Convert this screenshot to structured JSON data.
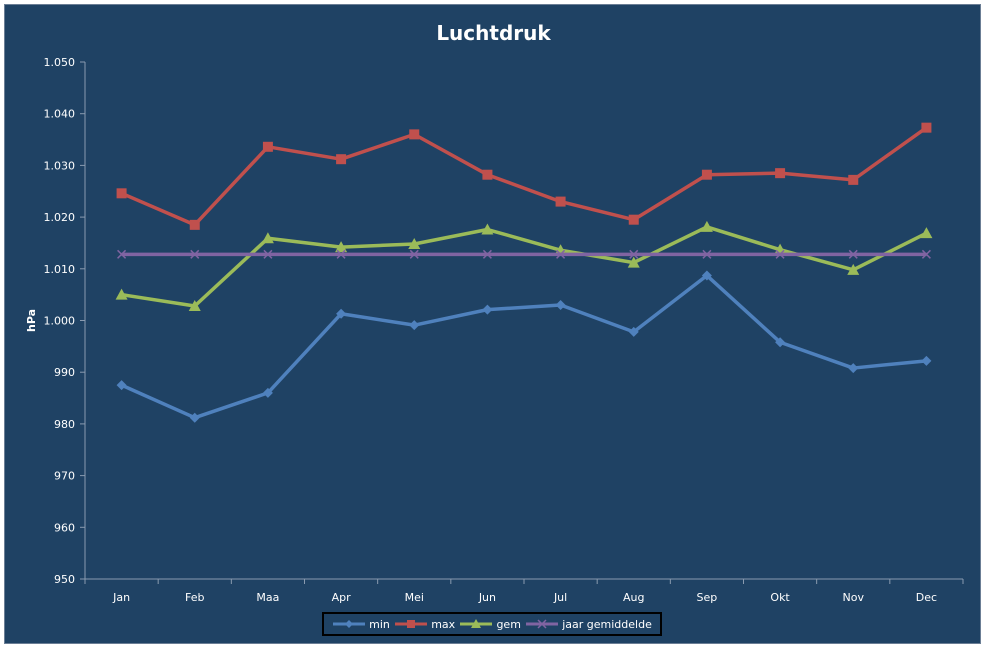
{
  "chart_data": {
    "type": "line",
    "title": "Luchtdruk",
    "xlabel": "",
    "ylabel": "hPa",
    "ylim": [
      950,
      1050
    ],
    "ytick_step": 10,
    "ytick_labels": [
      "950",
      "960",
      "970",
      "980",
      "990",
      "1.000",
      "1.010",
      "1.020",
      "1.030",
      "1.040",
      "1.050"
    ],
    "grid": false,
    "legend_position": "bottom",
    "categories": [
      "Jan",
      "Feb",
      "Maa",
      "Apr",
      "Mei",
      "Jun",
      "Jul",
      "Aug",
      "Sep",
      "Okt",
      "Nov",
      "Dec"
    ],
    "series": [
      {
        "name": "min",
        "color": "#4f81bd",
        "marker": "diamond",
        "values": [
          987.5,
          981.2,
          986.0,
          1001.3,
          999.1,
          1002.1,
          1003.0,
          997.8,
          1008.7,
          995.8,
          990.8,
          992.2
        ]
      },
      {
        "name": "max",
        "color": "#c0504d",
        "marker": "square",
        "values": [
          1024.6,
          1018.5,
          1033.6,
          1031.2,
          1036.0,
          1028.2,
          1023.0,
          1019.5,
          1028.2,
          1028.5,
          1027.2,
          1037.3
        ]
      },
      {
        "name": "gem",
        "color": "#9bbb59",
        "marker": "triangle",
        "values": [
          1005.0,
          1002.8,
          1015.9,
          1014.2,
          1014.8,
          1017.6,
          1013.6,
          1011.2,
          1018.1,
          1013.7,
          1009.8,
          1016.9
        ]
      },
      {
        "name": "jaar gemiddelde",
        "color": "#8064a2",
        "marker": "x",
        "values": [
          1012.8,
          1012.8,
          1012.8,
          1012.8,
          1012.8,
          1012.8,
          1012.8,
          1012.8,
          1012.8,
          1012.8,
          1012.8,
          1012.8
        ]
      }
    ]
  }
}
